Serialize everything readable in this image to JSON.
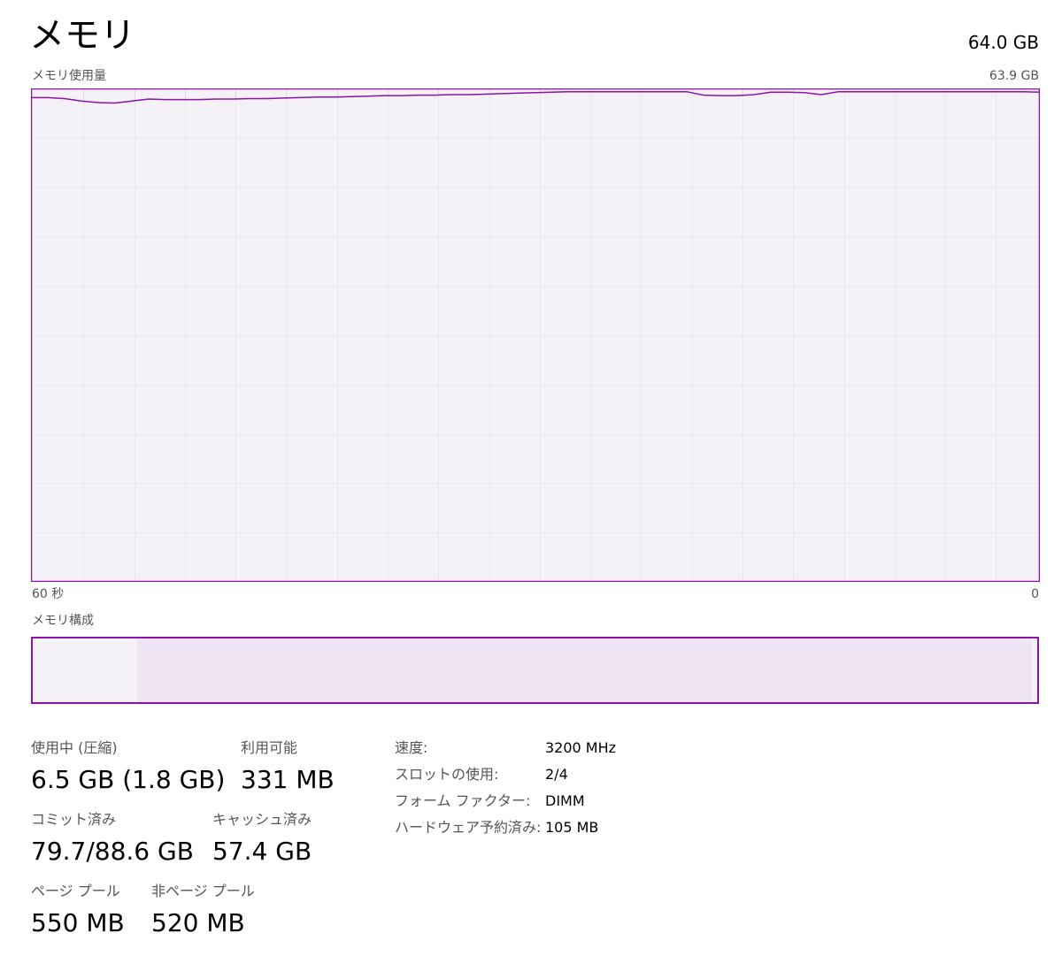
{
  "header": {
    "title": "メモリ",
    "total": "64.0 GB"
  },
  "graph": {
    "label": "メモリ使用量",
    "max_label": "63.9 GB",
    "time_left": "60 秒",
    "time_right": "0",
    "line_color": "#8b12ae",
    "fill_color": "#f4f2f6",
    "grid_color": "#d9d9d9",
    "usage_fraction": [
      0.985,
      0.985,
      0.983,
      0.978,
      0.975,
      0.974,
      0.978,
      0.982,
      0.981,
      0.981,
      0.981,
      0.982,
      0.982,
      0.983,
      0.983,
      0.984,
      0.985,
      0.986,
      0.986,
      0.987,
      0.988,
      0.989,
      0.989,
      0.99,
      0.99,
      0.991,
      0.991,
      0.992,
      0.993,
      0.994,
      0.995,
      0.996,
      0.997,
      0.997,
      0.997,
      0.997,
      0.997,
      0.997,
      0.997,
      0.997,
      0.99,
      0.989,
      0.989,
      0.991,
      0.996,
      0.996,
      0.995,
      0.991,
      0.997,
      0.997,
      0.997,
      0.997,
      0.997,
      0.997,
      0.997,
      0.997,
      0.997,
      0.997,
      0.997,
      0.997,
      0.996
    ]
  },
  "composition": {
    "label": "メモリ構成",
    "in_use_fraction": 0.104,
    "standby_fraction": 0.891,
    "border_color": "#8b12ae"
  },
  "stats": {
    "in_use": {
      "label": "使用中 (圧縮)",
      "value": "6.5 GB (1.8 GB)"
    },
    "available": {
      "label": "利用可能",
      "value": "331 MB"
    },
    "committed": {
      "label": "コミット済み",
      "value": "79.7/88.6 GB"
    },
    "cached": {
      "label": "キャッシュ済み",
      "value": "57.4 GB"
    },
    "paged_pool": {
      "label": "ページ プール",
      "value": "550 MB"
    },
    "non_paged_pool": {
      "label": "非ページ プール",
      "value": "520 MB"
    }
  },
  "details": {
    "speed": {
      "label": "速度:",
      "value": "3200 MHz"
    },
    "slots": {
      "label": "スロットの使用:",
      "value": "2/4"
    },
    "form_factor": {
      "label": "フォーム ファクター:",
      "value": "DIMM"
    },
    "hardware_reserved": {
      "label": "ハードウェア予約済み:",
      "value": "105 MB"
    }
  }
}
